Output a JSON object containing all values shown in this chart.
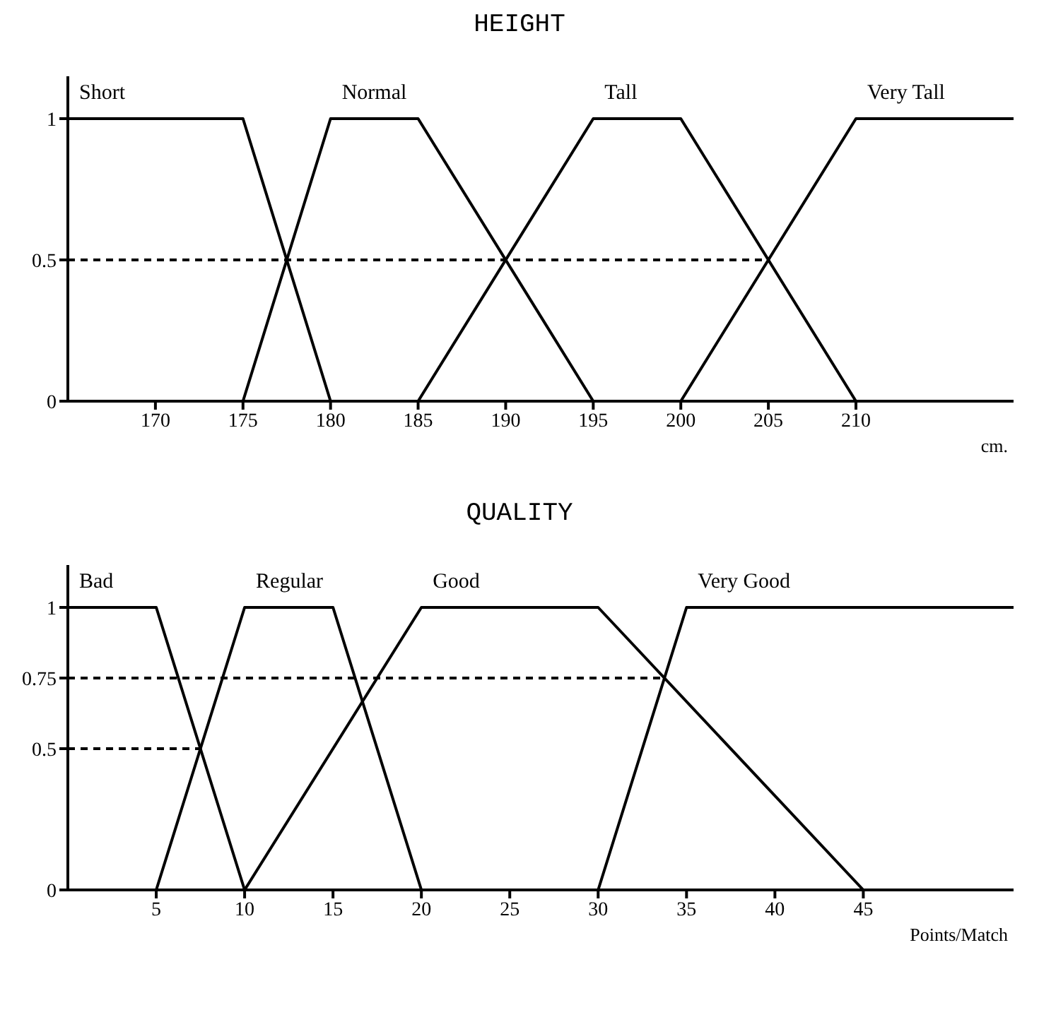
{
  "chart_data": [
    {
      "type": "line",
      "title": "HEIGHT",
      "xlabel": "cm.",
      "xlim": [
        165,
        219
      ],
      "xticks": [
        170,
        175,
        180,
        185,
        190,
        195,
        200,
        205,
        210
      ],
      "ylim": [
        0,
        1.15
      ],
      "yticks": [
        0,
        0.5,
        1
      ],
      "grid": false,
      "legend": false,
      "marker": "none",
      "series": [
        {
          "name": "Short",
          "color": "#000000",
          "x": [
            165,
            175,
            180
          ],
          "values": [
            1,
            1,
            0
          ]
        },
        {
          "name": "Normal",
          "color": "#000000",
          "x": [
            175,
            180,
            185,
            195
          ],
          "values": [
            0,
            1,
            1,
            0
          ]
        },
        {
          "name": "Tall",
          "color": "#000000",
          "x": [
            185,
            195,
            200,
            210
          ],
          "values": [
            0,
            1,
            1,
            0
          ]
        },
        {
          "name": "Very Tall",
          "color": "#000000",
          "x": [
            200,
            210,
            219
          ],
          "values": [
            0,
            1,
            1
          ]
        },
        {
          "color": "#000000",
          "line_style": "dashed",
          "x": [
            165,
            205
          ],
          "values": [
            0.5,
            0.5
          ]
        }
      ]
    },
    {
      "type": "line",
      "title": "QUALITY",
      "xlabel": "Points/Match",
      "xlim": [
        0,
        53.5
      ],
      "xticks": [
        5,
        10,
        15,
        20,
        25,
        30,
        35,
        40,
        45
      ],
      "ylim": [
        0,
        1.15
      ],
      "yticks": [
        0,
        0.5,
        0.75,
        1
      ],
      "grid": false,
      "legend": false,
      "marker": "none",
      "series": [
        {
          "name": "Bad",
          "color": "#000000",
          "x": [
            0,
            5,
            10
          ],
          "values": [
            1,
            1,
            0
          ]
        },
        {
          "name": "Regular",
          "color": "#000000",
          "x": [
            5,
            10,
            15,
            20
          ],
          "values": [
            0,
            1,
            1,
            0
          ]
        },
        {
          "name": "Good",
          "color": "#000000",
          "x": [
            10,
            20,
            30,
            45
          ],
          "values": [
            0,
            1,
            1,
            0
          ]
        },
        {
          "name": "Very Good",
          "color": "#000000",
          "x": [
            30,
            35,
            53.5
          ],
          "values": [
            0,
            1,
            1
          ]
        },
        {
          "color": "#000000",
          "line_style": "dashed",
          "x": [
            0,
            33.75
          ],
          "values": [
            0.75,
            0.75
          ]
        },
        {
          "color": "#000000",
          "line_style": "dashed",
          "x": [
            0,
            7.5
          ],
          "values": [
            0.5,
            0.5
          ]
        }
      ]
    }
  ]
}
